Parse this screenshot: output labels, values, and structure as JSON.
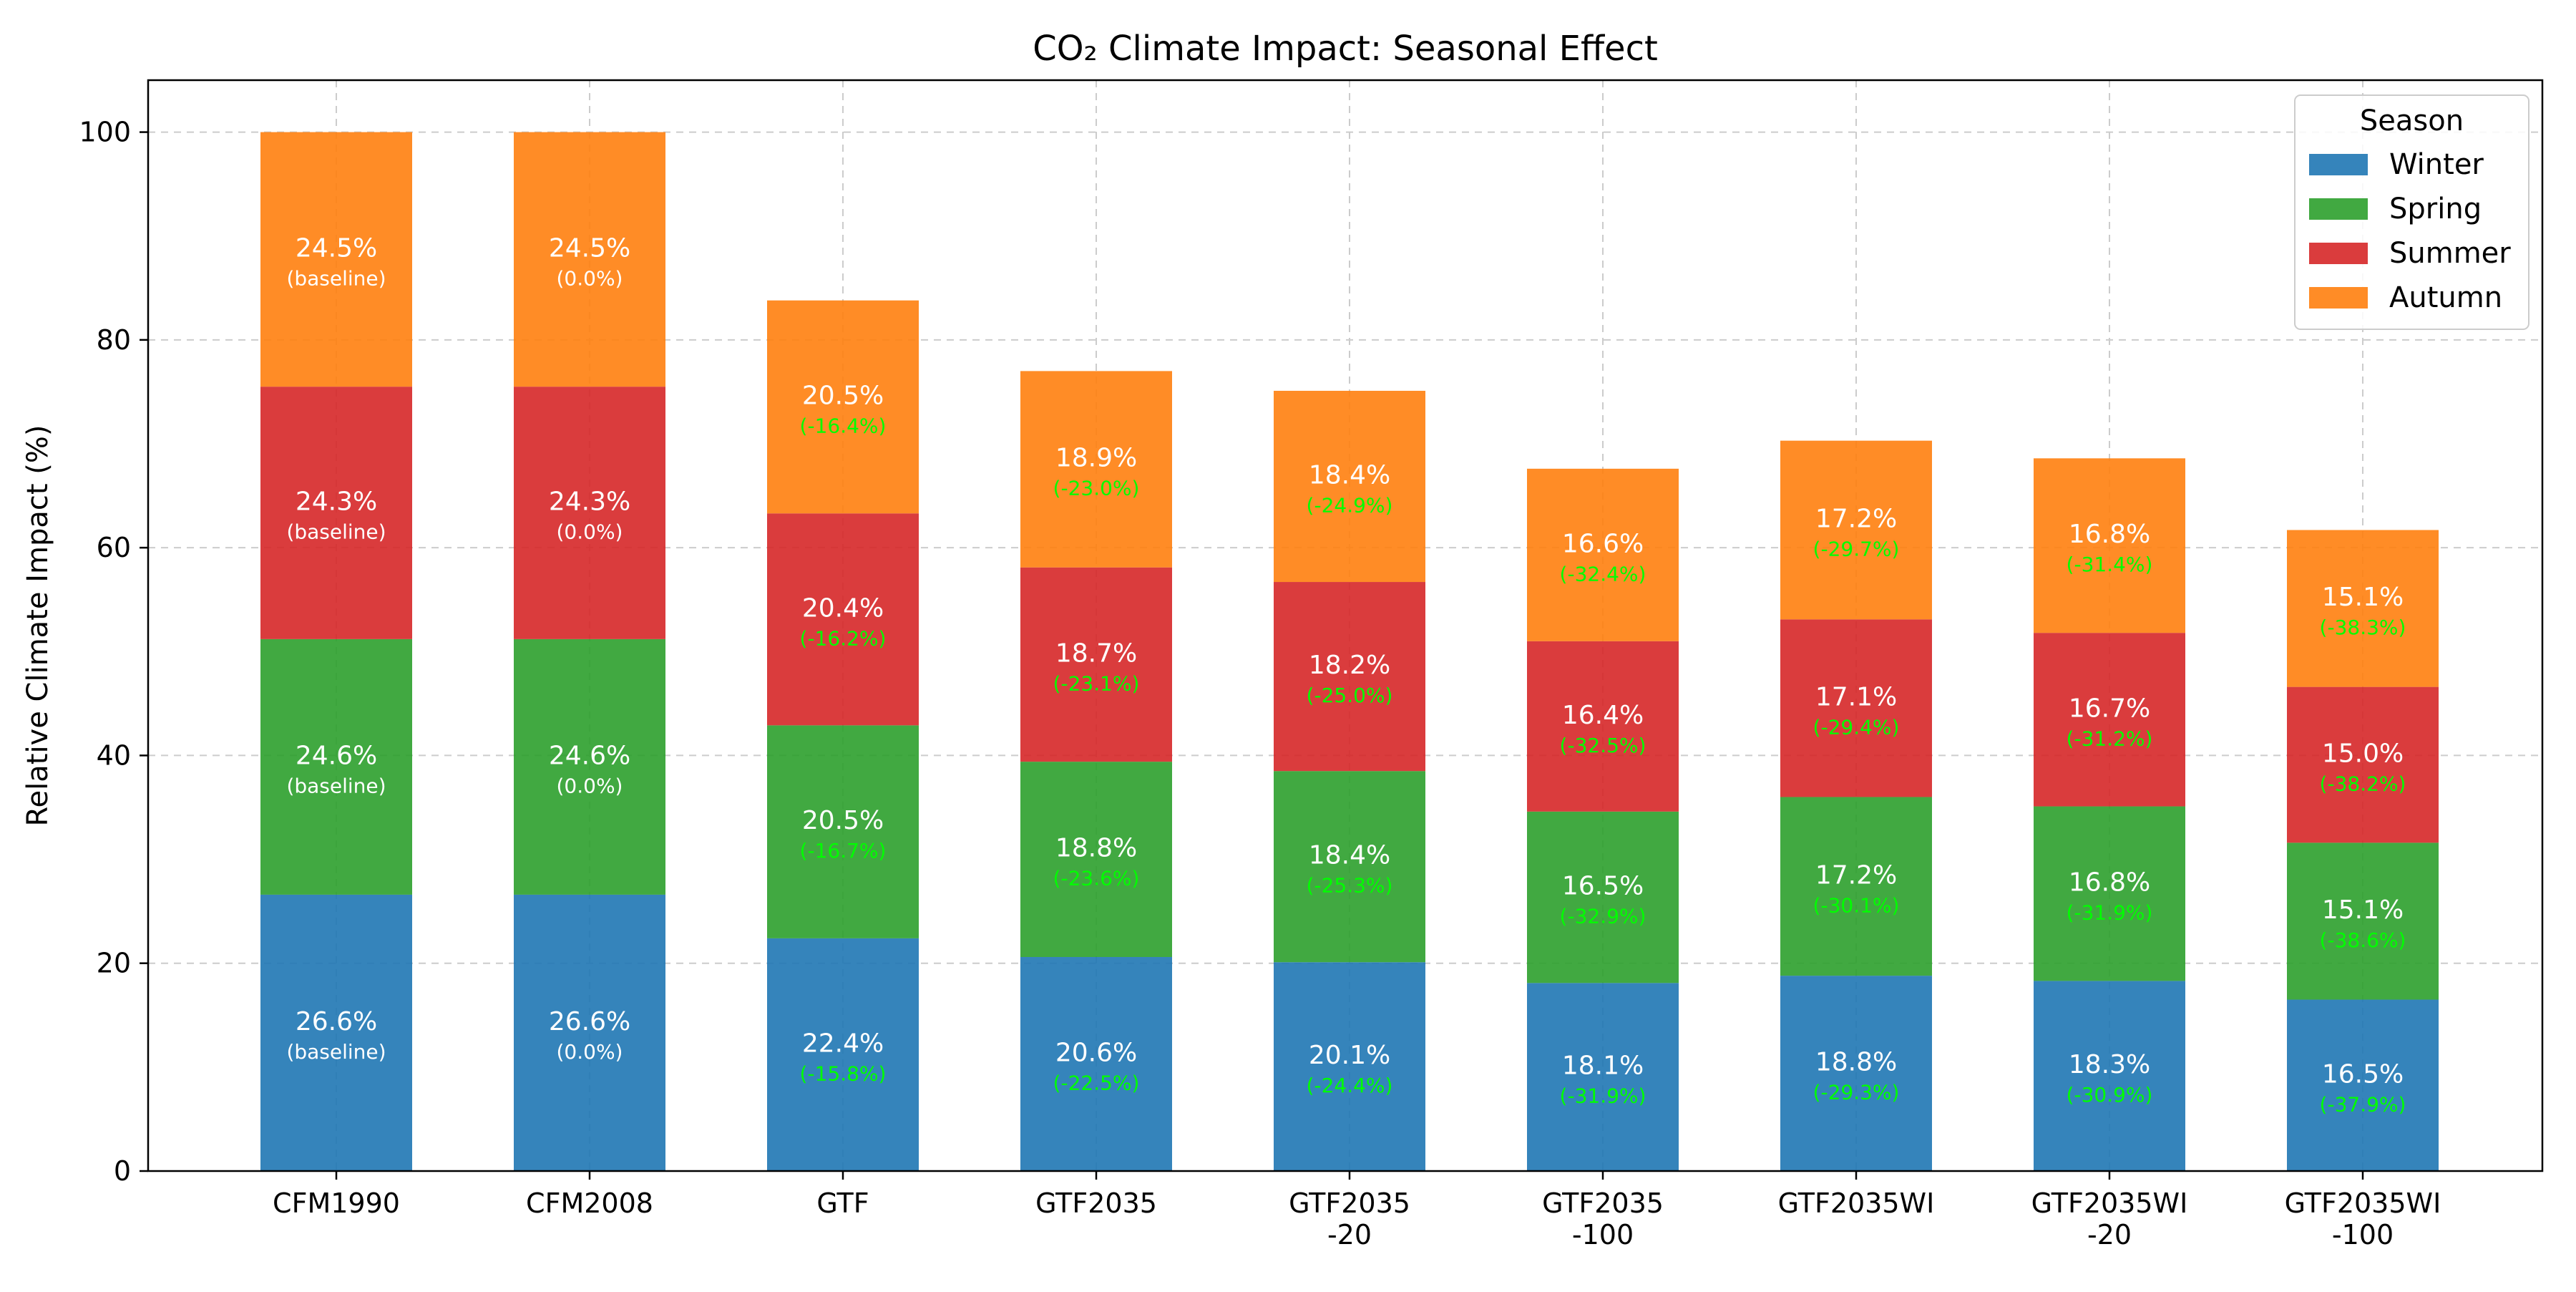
{
  "chart_data": {
    "type": "bar",
    "stacked": true,
    "title": "CO₂ Climate Impact: Seasonal Effect",
    "xlabel": "",
    "ylabel": "Relative Climate Impact (%)",
    "ylim": [
      0,
      105
    ],
    "yticks": [
      0,
      20,
      40,
      60,
      80,
      100
    ],
    "grid": true,
    "legend": {
      "title": "Season",
      "position": "top-right"
    },
    "categories": [
      [
        "CFM1990"
      ],
      [
        "CFM2008"
      ],
      [
        "GTF"
      ],
      [
        "GTF2035"
      ],
      [
        "GTF2035",
        "-20"
      ],
      [
        "GTF2035",
        "-100"
      ],
      [
        "GTF2035WI"
      ],
      [
        "GTF2035WI",
        "-20"
      ],
      [
        "GTF2035WI",
        "-100"
      ]
    ],
    "series": [
      {
        "name": "Winter",
        "color": "#1f77b4",
        "values": [
          26.6,
          26.6,
          22.4,
          20.6,
          20.1,
          18.1,
          18.8,
          18.3,
          16.5
        ],
        "labels": [
          "26.6%",
          "26.6%",
          "22.4%",
          "20.6%",
          "20.1%",
          "18.1%",
          "18.8%",
          "18.3%",
          "16.5%"
        ],
        "changes": [
          "(baseline)",
          "(0.0%)",
          "(-15.8%)",
          "(-22.5%)",
          "(-24.4%)",
          "(-31.9%)",
          "(-29.3%)",
          "(-30.9%)",
          "(-37.9%)"
        ]
      },
      {
        "name": "Spring",
        "color": "#2ca02c",
        "values": [
          24.6,
          24.6,
          20.5,
          18.8,
          18.4,
          16.5,
          17.2,
          16.8,
          15.1
        ],
        "labels": [
          "24.6%",
          "24.6%",
          "20.5%",
          "18.8%",
          "18.4%",
          "16.5%",
          "17.2%",
          "16.8%",
          "15.1%"
        ],
        "changes": [
          "(baseline)",
          "(0.0%)",
          "(-16.7%)",
          "(-23.6%)",
          "(-25.3%)",
          "(-32.9%)",
          "(-30.1%)",
          "(-31.9%)",
          "(-38.6%)"
        ]
      },
      {
        "name": "Summer",
        "color": "#d62728",
        "values": [
          24.3,
          24.3,
          20.4,
          18.7,
          18.2,
          16.4,
          17.1,
          16.7,
          15.0
        ],
        "labels": [
          "24.3%",
          "24.3%",
          "20.4%",
          "18.7%",
          "18.2%",
          "16.4%",
          "17.1%",
          "16.7%",
          "15.0%"
        ],
        "changes": [
          "(baseline)",
          "(0.0%)",
          "(-16.2%)",
          "(-23.1%)",
          "(-25.0%)",
          "(-32.5%)",
          "(-29.4%)",
          "(-31.2%)",
          "(-38.2%)"
        ]
      },
      {
        "name": "Autumn",
        "color": "#ff7f0e",
        "values": [
          24.5,
          24.5,
          20.5,
          18.9,
          18.4,
          16.6,
          17.2,
          16.8,
          15.1
        ],
        "labels": [
          "24.5%",
          "24.5%",
          "20.5%",
          "18.9%",
          "18.4%",
          "16.6%",
          "17.2%",
          "16.8%",
          "15.1%"
        ],
        "changes": [
          "(baseline)",
          "(0.0%)",
          "(-16.4%)",
          "(-23.0%)",
          "(-24.9%)",
          "(-32.4%)",
          "(-29.7%)",
          "(-31.4%)",
          "(-38.3%)"
        ]
      }
    ],
    "colors": {
      "baseline_text": "#ffffff",
      "change_text": "#00ff00",
      "grid": "#cccccc"
    }
  }
}
